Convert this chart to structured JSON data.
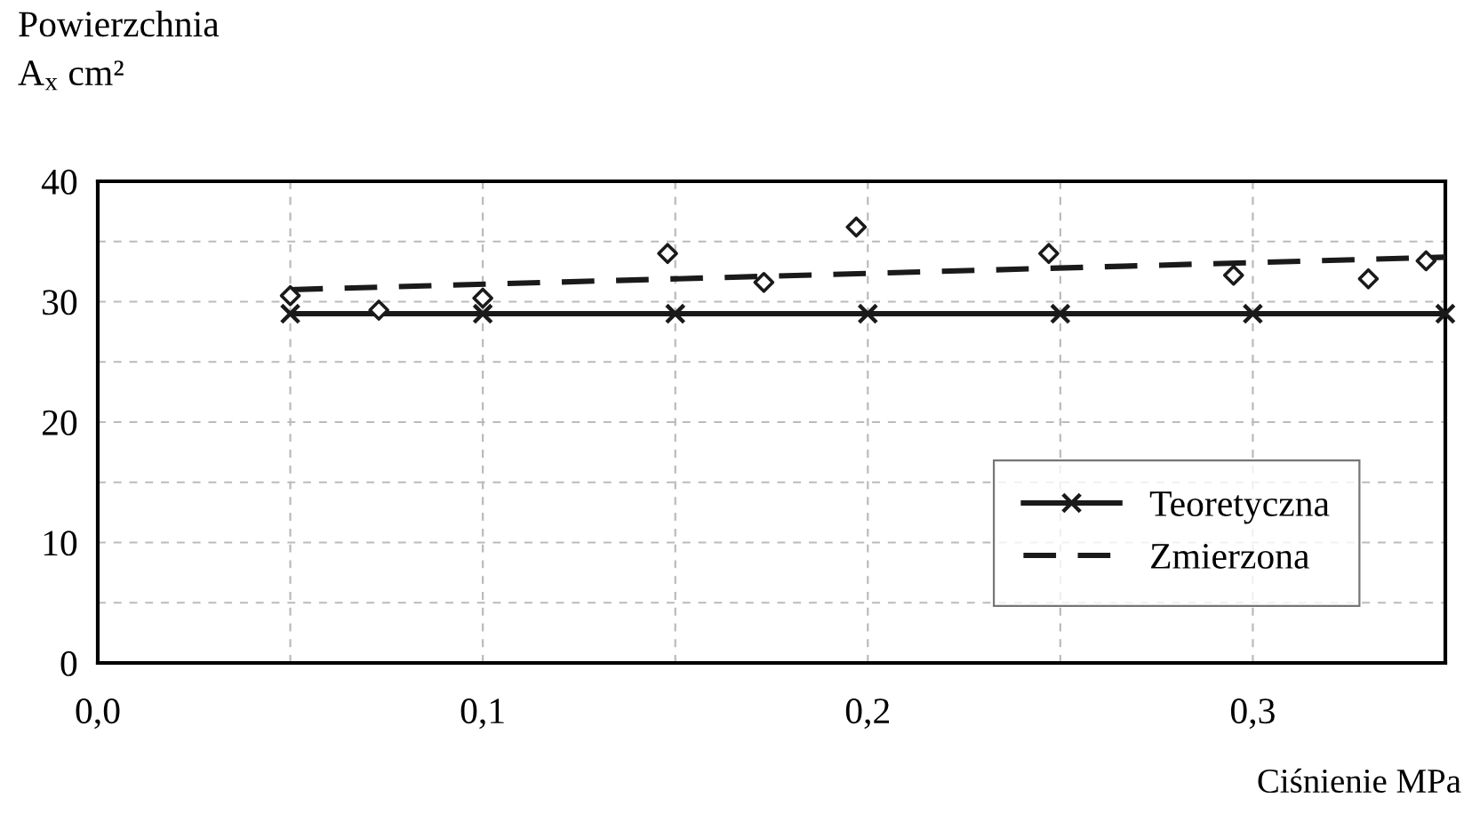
{
  "chart_data": {
    "type": "line",
    "ylabel": "Powierzchnia\nA$_{x}$ cm²",
    "xlabel": "Ciśnienie MPa",
    "xlim": [
      0,
      0.35
    ],
    "ylim": [
      0,
      40
    ],
    "xticks": [
      {
        "value": 0,
        "label": "0,0"
      },
      {
        "value": 0.05,
        "label": null
      },
      {
        "value": 0.1,
        "label": "0,1"
      },
      {
        "value": 0.15,
        "label": null
      },
      {
        "value": 0.2,
        "label": "0,2"
      },
      {
        "value": 0.25,
        "label": null
      },
      {
        "value": 0.3,
        "label": "0,3"
      },
      {
        "value": 0.35,
        "label": null
      }
    ],
    "yticks": [
      0,
      {
        "value": 5,
        "label": null
      },
      10,
      {
        "value": 15,
        "label": null
      },
      20,
      {
        "value": 25,
        "label": null
      },
      30,
      {
        "value": 35,
        "label": null
      },
      40
    ],
    "grid": true,
    "legend": "bottom right",
    "series": [
      {
        "name": "Teoretyczna",
        "color": "#1a1a1a",
        "marker": "cross",
        "line_style": "solid",
        "x": [
          0.05,
          0.1,
          0.15,
          0.2,
          0.25,
          0.3,
          0.35
        ],
        "values": [
          29,
          29,
          29,
          29,
          29,
          29,
          29
        ]
      },
      {
        "name": "Zmierzona",
        "color": "#1a1a1a",
        "line_style": "dashed",
        "x": [
          0.05,
          0.35
        ],
        "values": [
          31,
          33.7
        ]
      },
      {
        "type": "scatter",
        "color": "#1a1a1a",
        "marker": "diamond",
        "x": [
          0.05,
          0.073,
          0.1,
          0.148,
          0.173,
          0.197,
          0.247,
          0.295,
          0.33,
          0.345
        ],
        "values": [
          30.5,
          29.3,
          30.3,
          34,
          31.6,
          36.2,
          34,
          32.2,
          31.9,
          33.4
        ]
      }
    ]
  }
}
